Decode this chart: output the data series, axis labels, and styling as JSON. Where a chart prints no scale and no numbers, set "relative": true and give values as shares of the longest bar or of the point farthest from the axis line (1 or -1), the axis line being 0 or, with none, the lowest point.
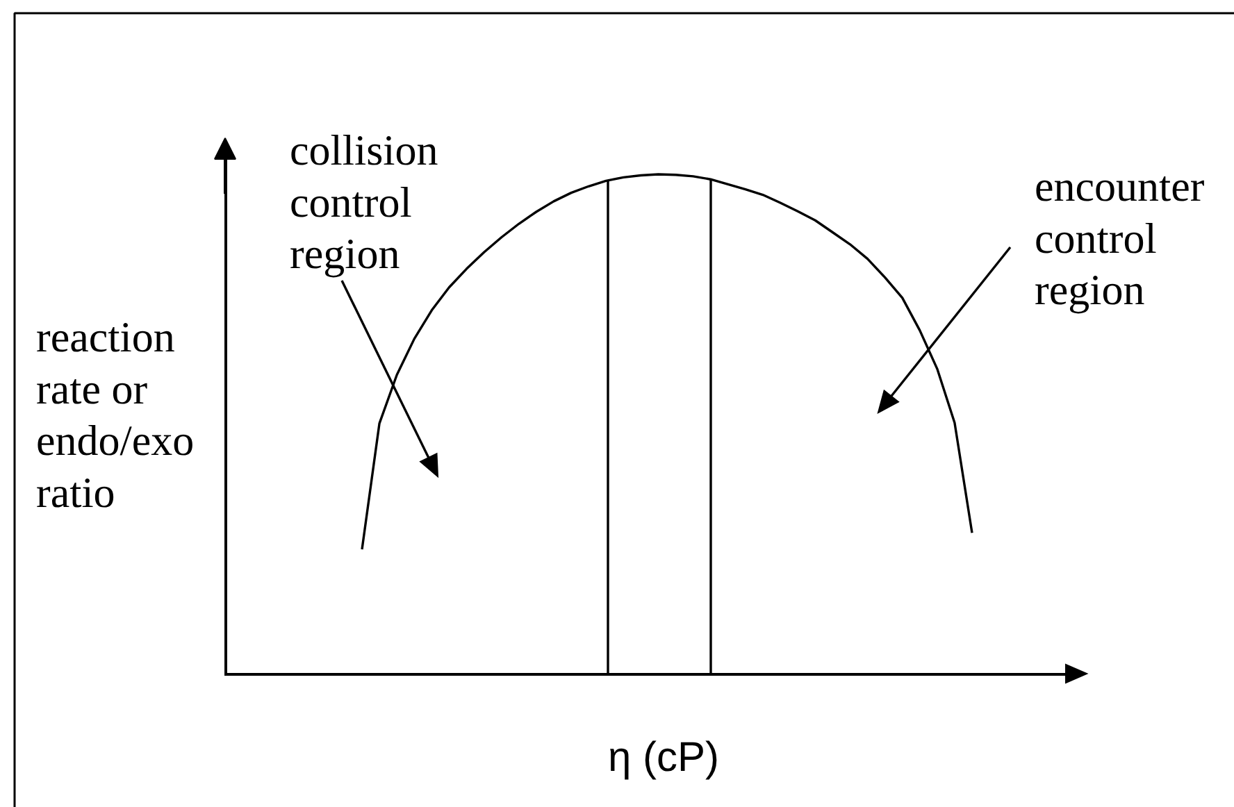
{
  "chart_data": {
    "type": "line",
    "relative": true,
    "categories": [
      null,
      null,
      null,
      null,
      null,
      null,
      null,
      null,
      null,
      null,
      null,
      null,
      null,
      null,
      null,
      null,
      null,
      null,
      null,
      null,
      null,
      null,
      null,
      null,
      null,
      null,
      null,
      null,
      null,
      null,
      null,
      null,
      null,
      null,
      null,
      null
    ],
    "values": [
      0.25,
      0.502,
      0.599,
      0.671,
      0.728,
      0.774,
      0.811,
      0.844,
      0.874,
      0.901,
      0.925,
      0.946,
      0.963,
      0.976,
      0.987,
      0.994,
      0.998,
      1,
      0.999,
      0.996,
      0.99,
      0.98,
      0.97,
      0.959,
      0.943,
      0.926,
      0.908,
      0.884,
      0.86,
      0.831,
      0.794,
      0.753,
      0.688,
      0.611,
      0.503,
      0.283
    ],
    "color": "#000000",
    "line_style": "solid",
    "xlabel": "η (cP)",
    "ylabel": "reaction rate or endo/exo ratio",
    "annotations": [
      "collision control region",
      "encounter control region"
    ]
  }
}
